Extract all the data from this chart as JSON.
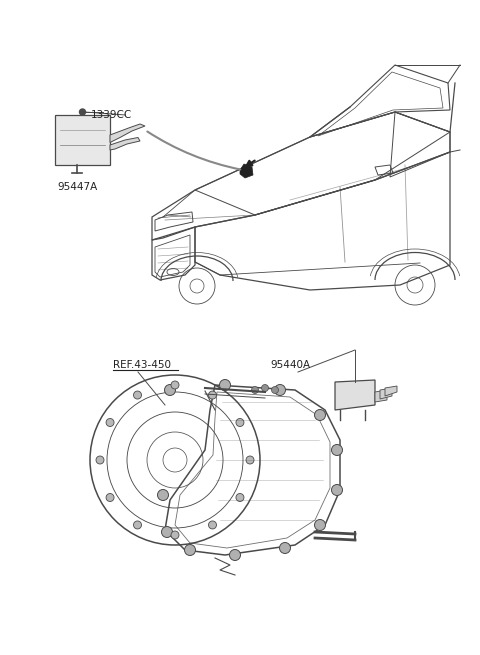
{
  "bg_color": "#ffffff",
  "line_color": "#4a4a4a",
  "dark_color": "#222222",
  "gray_color": "#888888",
  "light_gray": "#cccccc",
  "figsize": [
    4.8,
    6.55
  ],
  "dpi": 100,
  "label_1339CC": "1339CC",
  "label_95447A": "95447A",
  "label_REF43450": "REF.43-450",
  "label_95440A": "95440A"
}
